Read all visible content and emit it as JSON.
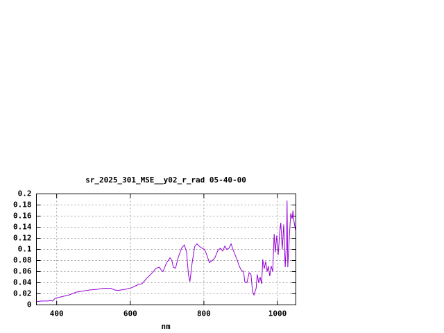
{
  "chart_data": {
    "type": "line",
    "title": "sr_2025_301_MSE__y02_r_rad 05-40-00",
    "x_label": "nm",
    "xlim": [
      345,
      1050
    ],
    "ylim": [
      0,
      0.2
    ],
    "xticks": [
      400,
      600,
      800,
      1000
    ],
    "yticks": [
      0,
      0.02,
      0.04,
      0.06,
      0.08,
      0.1,
      0.12,
      0.14,
      0.16,
      0.18,
      0.2
    ],
    "grid": true,
    "series": [
      {
        "color": "#9400d3",
        "x": [
          345,
          360,
          377,
          381,
          389,
          396,
          415,
          434,
          453,
          472,
          491,
          509,
          528,
          547,
          557,
          566,
          585,
          604,
          623,
          632,
          642,
          651,
          660,
          670,
          679,
          685,
          689,
          698,
          708,
          713,
          717,
          723,
          730,
          740,
          747,
          753,
          758,
          762,
          768,
          775,
          781,
          789,
          796,
          802,
          808,
          815,
          823,
          830,
          838,
          845,
          851,
          857,
          862,
          868,
          874,
          879,
          885,
          891,
          896,
          902,
          908,
          911,
          917,
          923,
          928,
          932,
          936,
          942,
          945,
          949,
          953,
          957,
          960,
          964,
          968,
          972,
          975,
          979,
          983,
          987,
          991,
          994,
          998,
          1002,
          1006,
          1009,
          1013,
          1017,
          1021,
          1025,
          1026,
          1028,
          1032,
          1036,
          1040,
          1042,
          1045,
          1049
        ],
        "values": [
          0.006,
          0.007,
          0.007,
          0.008,
          0.007,
          0.012,
          0.015,
          0.018,
          0.023,
          0.025,
          0.027,
          0.028,
          0.03,
          0.03,
          0.027,
          0.026,
          0.028,
          0.031,
          0.037,
          0.038,
          0.046,
          0.052,
          0.058,
          0.066,
          0.068,
          0.062,
          0.06,
          0.075,
          0.085,
          0.08,
          0.068,
          0.066,
          0.085,
          0.103,
          0.108,
          0.095,
          0.055,
          0.042,
          0.075,
          0.105,
          0.11,
          0.105,
          0.102,
          0.1,
          0.09,
          0.076,
          0.08,
          0.085,
          0.098,
          0.102,
          0.097,
          0.106,
          0.1,
          0.102,
          0.11,
          0.1,
          0.09,
          0.08,
          0.07,
          0.062,
          0.06,
          0.042,
          0.04,
          0.058,
          0.055,
          0.025,
          0.018,
          0.03,
          0.055,
          0.04,
          0.05,
          0.038,
          0.082,
          0.065,
          0.078,
          0.06,
          0.07,
          0.052,
          0.07,
          0.06,
          0.128,
          0.095,
          0.125,
          0.09,
          0.13,
          0.148,
          0.1,
          0.145,
          0.068,
          0.125,
          0.188,
          0.068,
          0.12,
          0.165,
          0.155,
          0.17,
          0.15,
          0.135
        ]
      }
    ]
  }
}
